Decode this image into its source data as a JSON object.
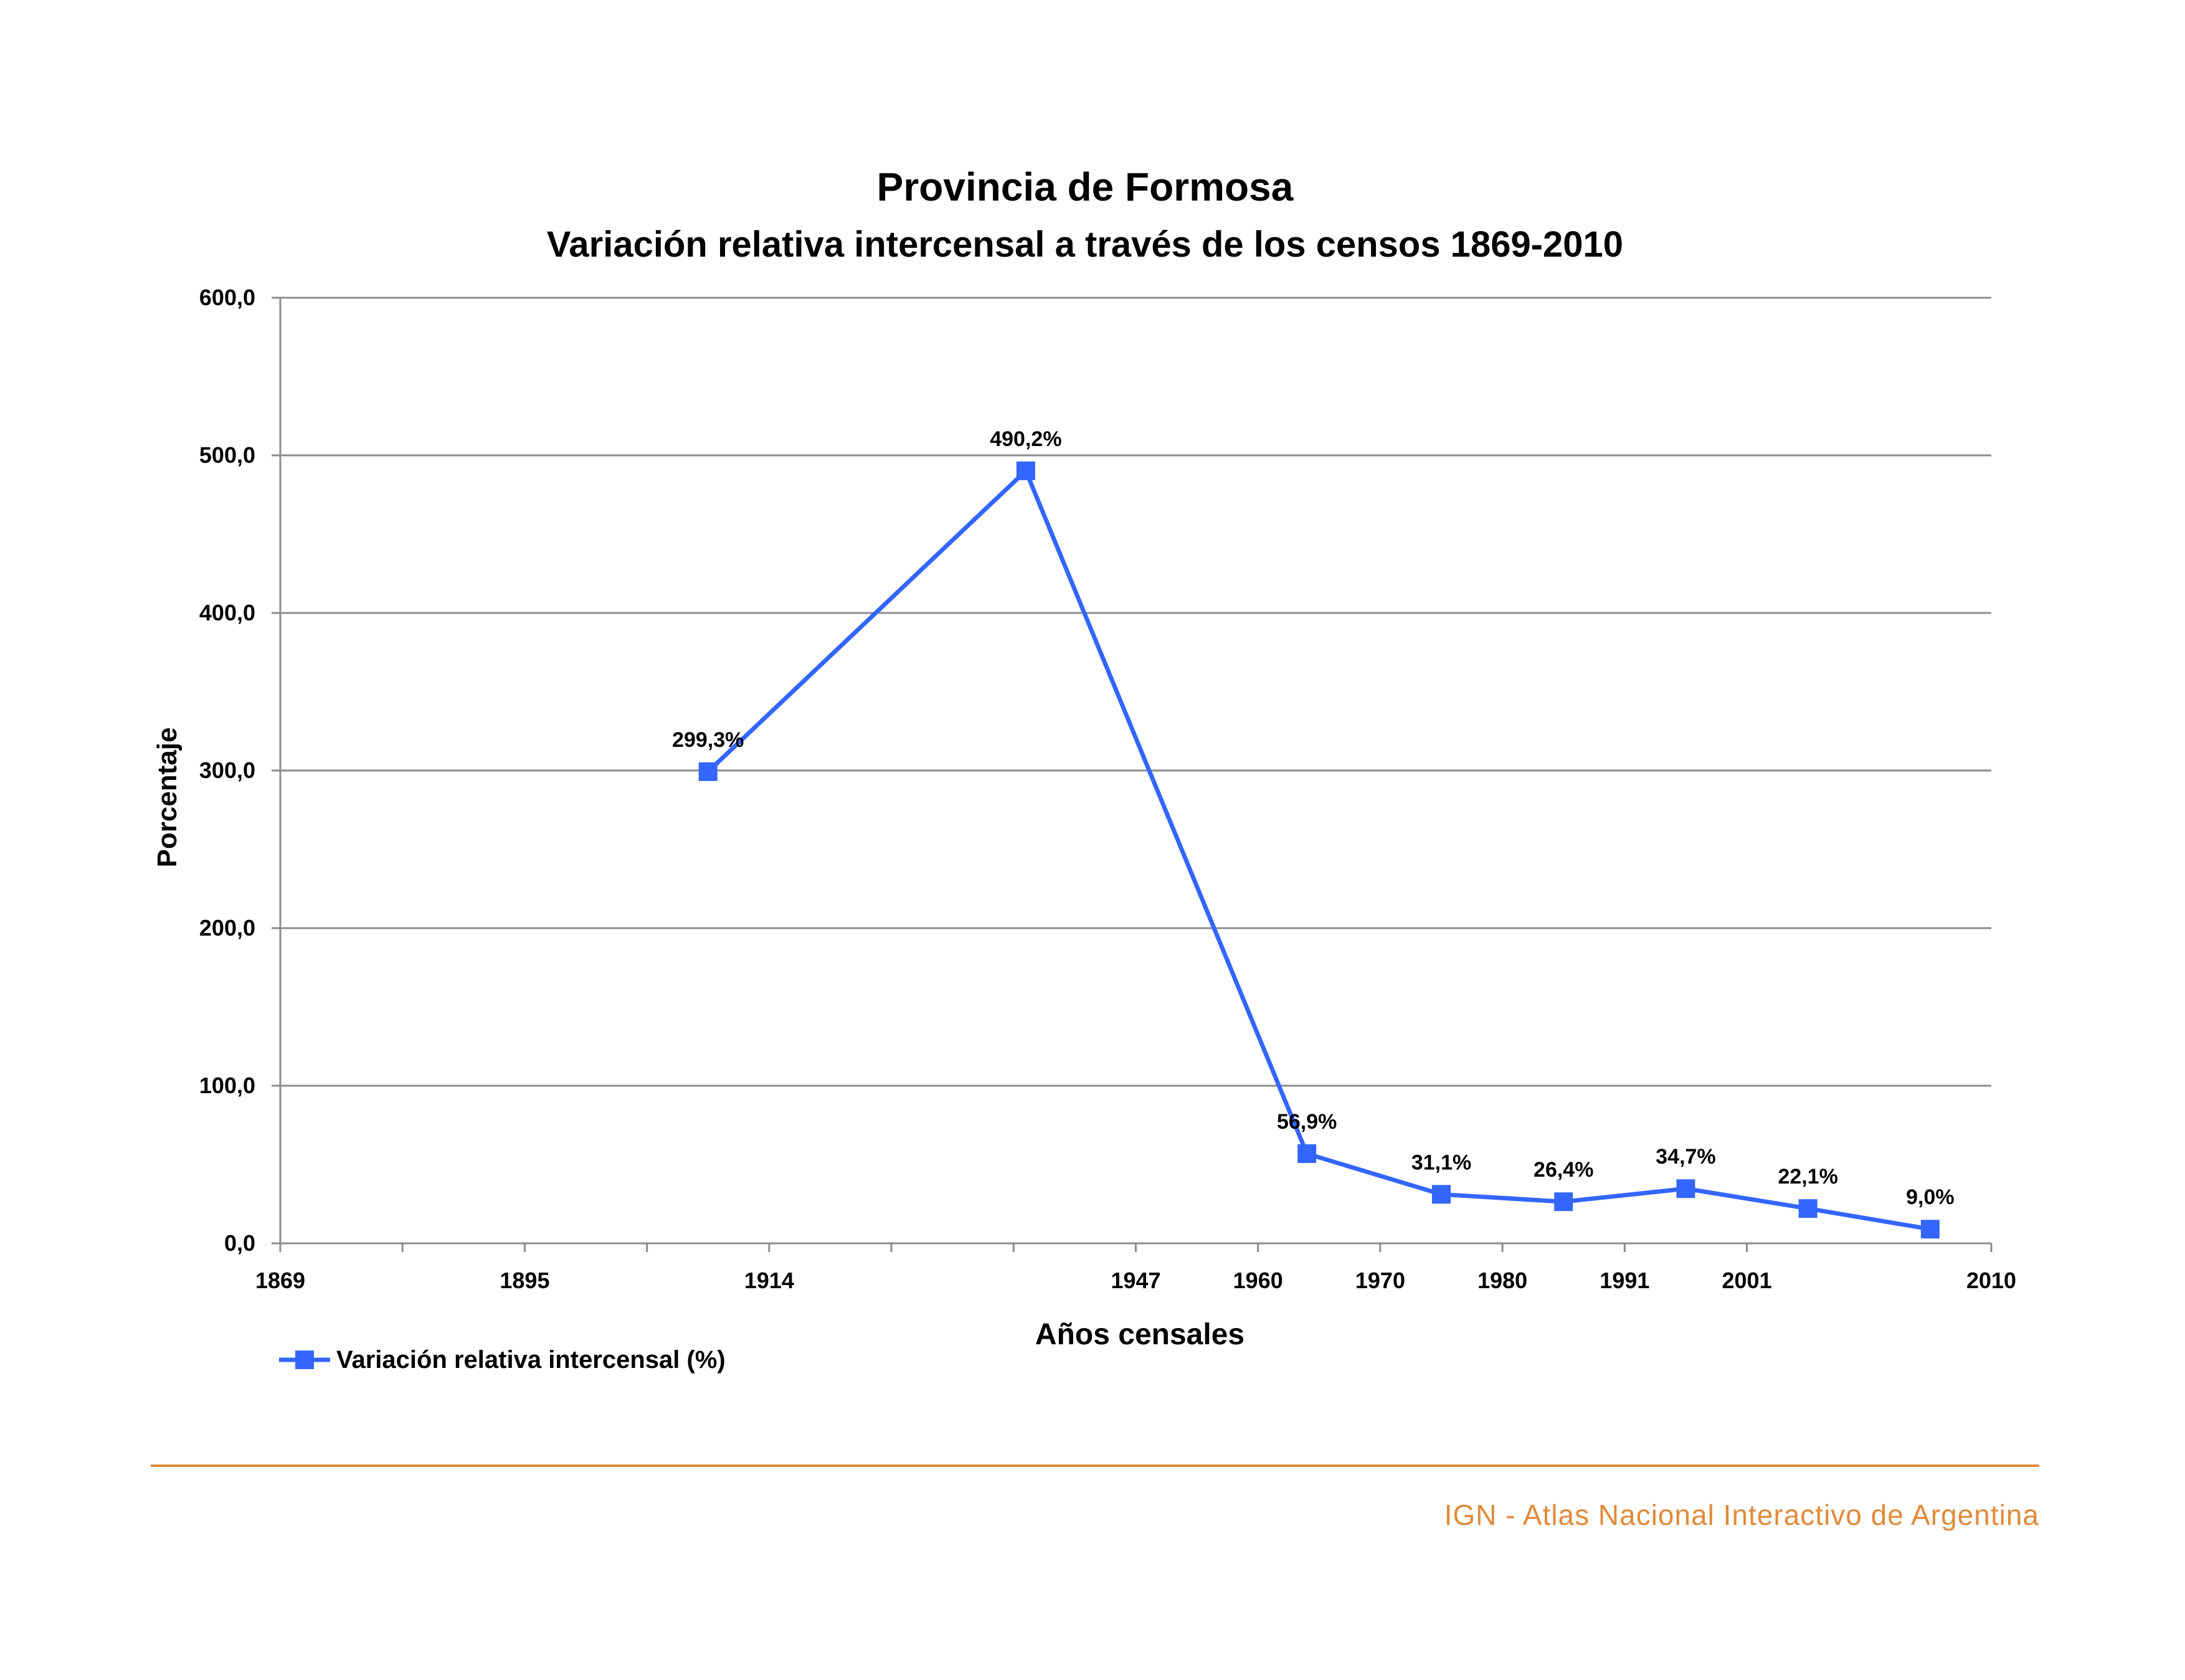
{
  "footer": {
    "credit": "IGN - Atlas Nacional Interactivo de Argentina",
    "rule_color": "#e08a3a",
    "text_color": "#e08a3a"
  },
  "chart_data": {
    "type": "line",
    "title": "Provincia de Formosa",
    "subtitle": "Variación relativa intercensal a través de los censos 1869-2010",
    "xlabel": "Años censales",
    "ylabel": "Porcentaje",
    "ylim": [
      0,
      600
    ],
    "y_ticks": [
      0,
      100,
      200,
      300,
      400,
      500,
      600
    ],
    "y_tick_labels": [
      "0,0",
      "100,0",
      "200,0",
      "300,0",
      "400,0",
      "500,0",
      "600,0"
    ],
    "categories": [
      "1869",
      "",
      "1895",
      "",
      "1914",
      "",
      "",
      "1947",
      "1960",
      "1970",
      "1980",
      "1991",
      "2001",
      "2010"
    ],
    "grid": true,
    "legend_position": "bottom-left",
    "series": [
      {
        "name": "Variación relativa intercensal (%)",
        "color": "#3366ff",
        "marker": "square",
        "points": [
          {
            "slot": 3.5,
            "y": 299.3,
            "label": "299,3%"
          },
          {
            "slot": 6.1,
            "y": 490.2,
            "label": "490,2%"
          },
          {
            "slot": 8.4,
            "y": 56.9,
            "label": "56,9%"
          },
          {
            "slot": 9.5,
            "y": 31.1,
            "label": "31,1%"
          },
          {
            "slot": 10.5,
            "y": 26.4,
            "label": "26,4%"
          },
          {
            "slot": 11.5,
            "y": 34.7,
            "label": "34,7%"
          },
          {
            "slot": 12.5,
            "y": 22.1,
            "label": "22,1%"
          },
          {
            "slot": 13.5,
            "y": 9.0,
            "label": "9,0%"
          }
        ]
      }
    ]
  }
}
